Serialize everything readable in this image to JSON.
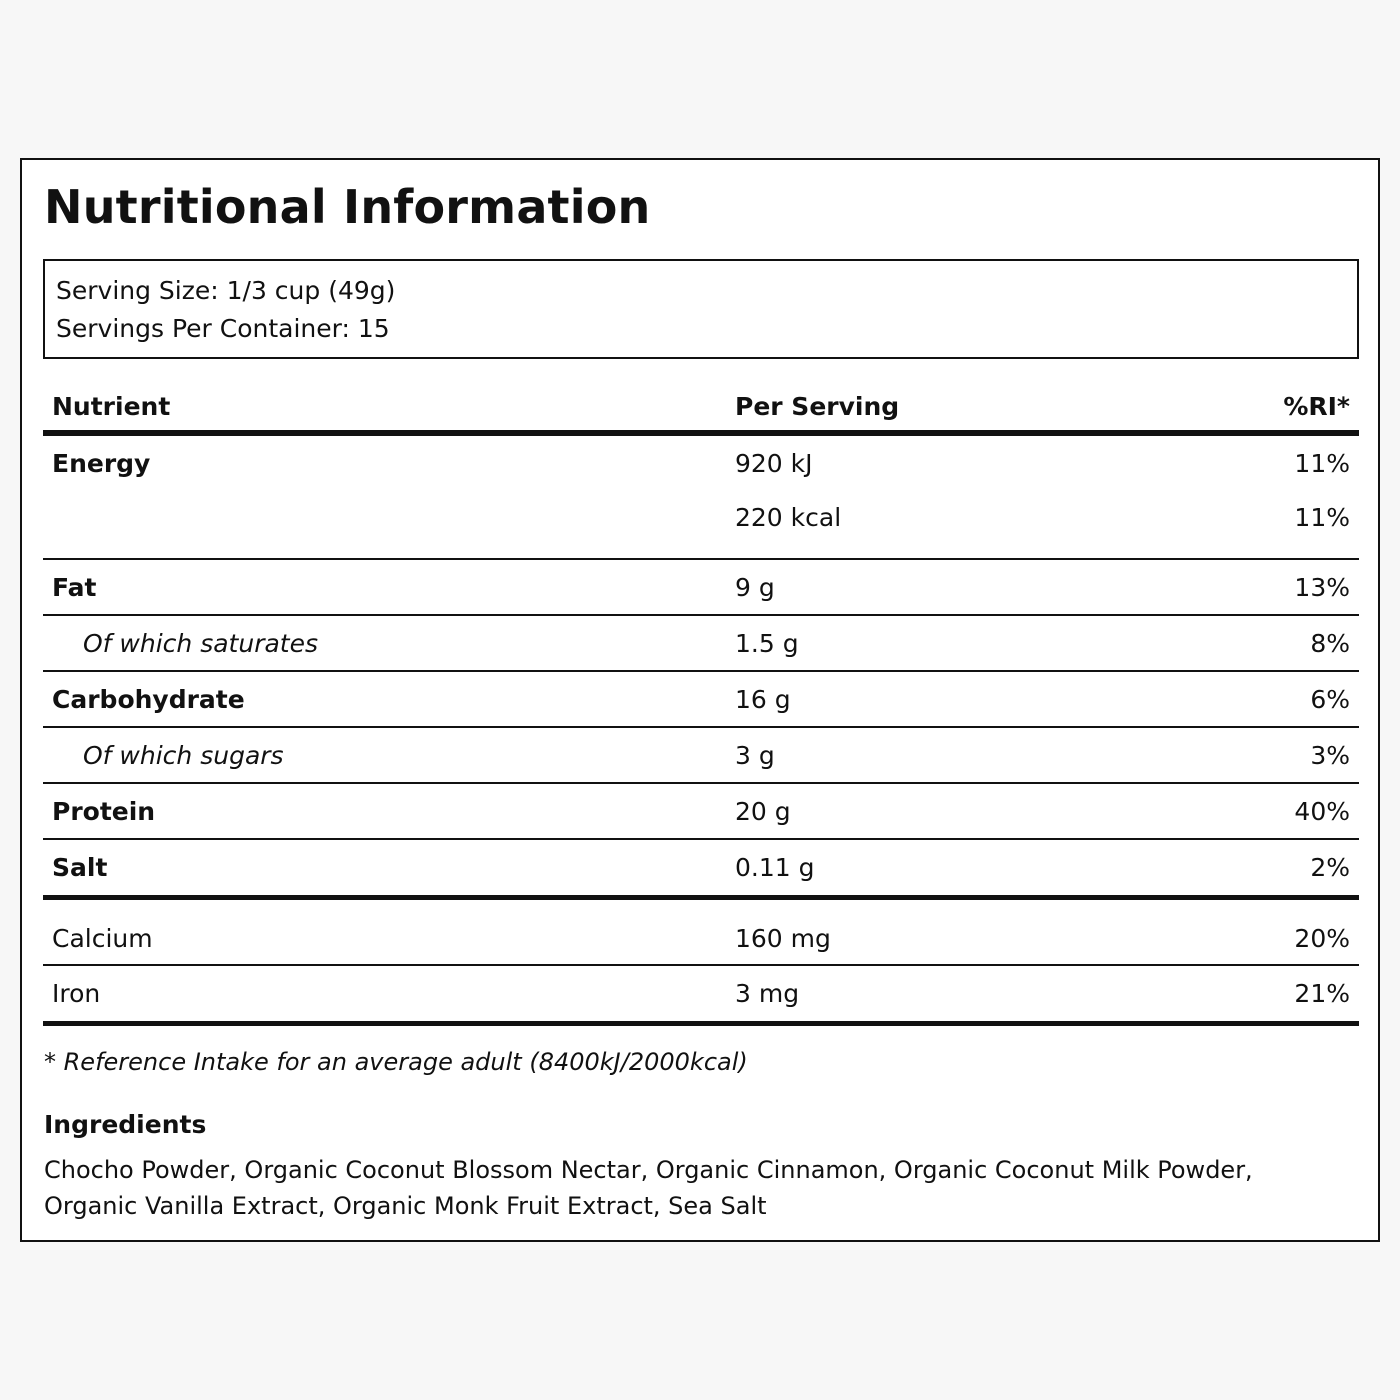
{
  "title": "Nutritional Information",
  "serving": {
    "size": "Serving Size: 1/3 cup (49g)",
    "per_container": "Servings Per Container: 15"
  },
  "table": {
    "headers": {
      "nutrient": "Nutrient",
      "per_serving": "Per Serving",
      "ri": "%RI*"
    },
    "energy": {
      "name": "Energy",
      "kj": "920 kJ",
      "kj_ri": "11%",
      "kcal": "220 kcal",
      "kcal_ri": "11%"
    },
    "rows": [
      {
        "name": "Fat",
        "value": "9 g",
        "ri": "13%"
      },
      {
        "name": "Of which saturates",
        "value": "1.5 g",
        "ri": "8%"
      },
      {
        "name": "Carbohydrate",
        "value": "16 g",
        "ri": "6%"
      },
      {
        "name": "Of which sugars",
        "value": "3 g",
        "ri": "3%"
      },
      {
        "name": "Protein",
        "value": "20 g",
        "ri": "40%"
      },
      {
        "name": "Salt",
        "value": "0.11 g",
        "ri": "2%"
      }
    ],
    "minerals": [
      {
        "name": "Calcium",
        "value": "160 mg",
        "ri": "20%"
      },
      {
        "name": "Iron",
        "value": "3 mg",
        "ri": "21%"
      }
    ]
  },
  "footnote": "* Reference Intake for an average adult (8400kJ/2000kcal)",
  "ingredients": {
    "title": "Ingredients",
    "text": "Chocho Powder, Organic Coconut Blossom Nectar, Organic Cinnamon, Organic Coconut Milk Powder, Organic Vanilla Extract, Organic Monk Fruit Extract, Sea Salt"
  }
}
